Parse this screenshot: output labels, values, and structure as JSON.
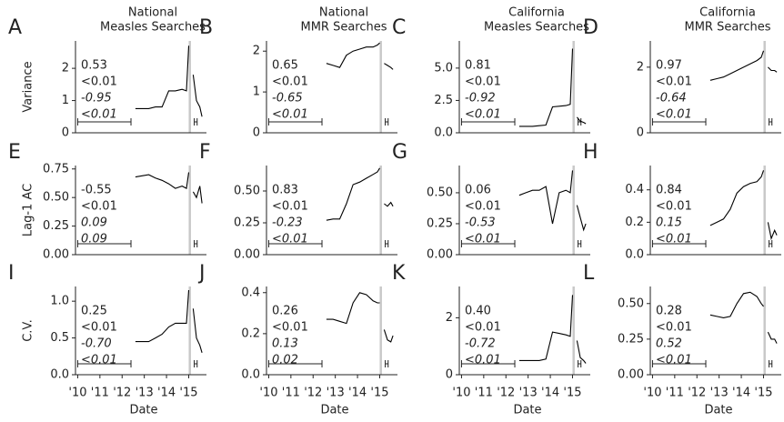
{
  "chart_data": [
    {
      "type": "line",
      "label": "A",
      "title": [
        "National",
        "Measles Searches"
      ],
      "ylabel": "Variance",
      "ylim": [
        0,
        2.85
      ],
      "yticks": [
        0,
        1,
        2
      ],
      "xlim": [
        2009.9,
        2015.8
      ],
      "color": "#000",
      "span": [
        2015.0,
        2015.1
      ],
      "window": [
        2010,
        2012.4
      ],
      "window2": [
        2015.25,
        2015.38
      ],
      "annotations": [
        "0.53",
        "<0.01",
        "-0.95",
        "<0.01"
      ],
      "x": [
        2012.6,
        2012.9,
        2013.2,
        2013.5,
        2013.8,
        2014.1,
        2014.4,
        2014.7,
        2014.9,
        2015.0,
        2015.1,
        2015.2,
        2015.35,
        2015.5,
        2015.6
      ],
      "values": [
        0.75,
        0.75,
        0.75,
        0.8,
        0.8,
        1.3,
        1.3,
        1.35,
        1.3,
        2.7,
        null,
        1.8,
        1.0,
        0.8,
        0.5
      ]
    },
    {
      "type": "line",
      "label": "B",
      "title": [
        "National",
        "MMR Searches"
      ],
      "ylim": [
        0,
        2.25
      ],
      "yticks": [
        0,
        1,
        2
      ],
      "xlim": [
        2009.9,
        2015.8
      ],
      "color": "#000",
      "span": [
        2015.0,
        2015.1
      ],
      "window": [
        2010,
        2012.4
      ],
      "window2": [
        2015.25,
        2015.38
      ],
      "annotations": [
        "0.65",
        "<0.01",
        "-0.65",
        "<0.01"
      ],
      "x": [
        2012.6,
        2012.9,
        2013.2,
        2013.5,
        2013.8,
        2014.1,
        2014.4,
        2014.7,
        2014.9,
        2015.0,
        2015.1,
        2015.2,
        2015.35,
        2015.5,
        2015.6
      ],
      "values": [
        1.7,
        1.65,
        1.6,
        1.9,
        2.0,
        2.05,
        2.1,
        2.1,
        2.15,
        2.2,
        null,
        1.7,
        1.65,
        1.6,
        1.55
      ]
    },
    {
      "type": "line",
      "label": "C",
      "title": [
        "California",
        "Measles Searches"
      ],
      "ylim": [
        0,
        7.1
      ],
      "yticks": [
        {
          "value": 0,
          "label": "0.0"
        },
        {
          "value": 2.5,
          "label": "2.5"
        },
        {
          "value": 5,
          "label": "5.0"
        }
      ],
      "xlim": [
        2009.9,
        2015.8
      ],
      "color": "#000",
      "span": [
        2015.0,
        2015.1
      ],
      "window": [
        2010,
        2012.4
      ],
      "window2": [
        2015.25,
        2015.38
      ],
      "annotations": [
        "0.81",
        "<0.01",
        "-0.92",
        "<0.01"
      ],
      "x": [
        2012.6,
        2012.9,
        2013.2,
        2013.5,
        2013.8,
        2014.1,
        2014.4,
        2014.7,
        2014.9,
        2015.0,
        2015.1,
        2015.2,
        2015.35,
        2015.5,
        2015.6
      ],
      "values": [
        0.5,
        0.5,
        0.5,
        0.55,
        0.6,
        2.0,
        2.05,
        2.1,
        2.2,
        6.5,
        null,
        1.2,
        0.9,
        0.8,
        0.7
      ]
    },
    {
      "type": "line",
      "label": "D",
      "title": [
        "California",
        "MMR Searches"
      ],
      "ylim": [
        0,
        2.8
      ],
      "yticks": [
        0,
        2
      ],
      "xlim": [
        2009.9,
        2015.8
      ],
      "color": "#000",
      "span": [
        2015.0,
        2015.1
      ],
      "window": [
        2010,
        2012.4
      ],
      "window2": [
        2015.25,
        2015.38
      ],
      "annotations": [
        "0.97",
        "<0.01",
        "-0.64",
        "<0.01"
      ],
      "x": [
        2012.6,
        2012.9,
        2013.2,
        2013.5,
        2013.8,
        2014.1,
        2014.4,
        2014.7,
        2014.9,
        2015.0,
        2015.1,
        2015.2,
        2015.35,
        2015.5,
        2015.6
      ],
      "values": [
        1.6,
        1.65,
        1.7,
        1.8,
        1.9,
        2.0,
        2.1,
        2.2,
        2.3,
        2.5,
        null,
        2.0,
        1.9,
        1.9,
        1.85
      ]
    },
    {
      "type": "line",
      "label": "E",
      "ylabel": "Lag-1 AC",
      "ylim": [
        0,
        0.78
      ],
      "yticks": [
        {
          "value": 0,
          "label": "0.00"
        },
        {
          "value": 0.25,
          "label": "0.25"
        },
        {
          "value": 0.5,
          "label": "0.50"
        },
        {
          "value": 0.75,
          "label": "0.75"
        }
      ],
      "xlim": [
        2009.9,
        2015.8
      ],
      "color": "#000",
      "span": [
        2015.0,
        2015.1
      ],
      "window": [
        2010,
        2012.4
      ],
      "window2": [
        2015.25,
        2015.38
      ],
      "annotations": [
        "-0.55",
        "<0.01",
        "0.09",
        "0.09"
      ],
      "x": [
        2012.6,
        2012.9,
        2013.2,
        2013.5,
        2013.8,
        2014.1,
        2014.4,
        2014.7,
        2014.9,
        2015.0,
        2015.1,
        2015.2,
        2015.35,
        2015.5,
        2015.6
      ],
      "values": [
        0.68,
        0.69,
        0.7,
        0.67,
        0.65,
        0.62,
        0.58,
        0.6,
        0.58,
        0.72,
        null,
        0.55,
        0.5,
        0.6,
        0.45
      ]
    },
    {
      "type": "line",
      "label": "F",
      "ylim": [
        0,
        0.7
      ],
      "yticks": [
        {
          "value": 0,
          "label": "0.00"
        },
        {
          "value": 0.25,
          "label": "0.25"
        },
        {
          "value": 0.5,
          "label": "0.50"
        }
      ],
      "xlim": [
        2009.9,
        2015.8
      ],
      "color": "#000",
      "span": [
        2015.0,
        2015.1
      ],
      "window": [
        2010,
        2012.4
      ],
      "window2": [
        2015.25,
        2015.38
      ],
      "annotations": [
        "0.83",
        "<0.01",
        "-0.23",
        "<0.01"
      ],
      "x": [
        2012.6,
        2012.9,
        2013.2,
        2013.5,
        2013.8,
        2014.1,
        2014.4,
        2014.7,
        2014.9,
        2015.0,
        2015.1,
        2015.2,
        2015.35,
        2015.5,
        2015.6
      ],
      "values": [
        0.27,
        0.28,
        0.28,
        0.4,
        0.55,
        0.57,
        0.6,
        0.63,
        0.65,
        0.68,
        null,
        0.4,
        0.38,
        0.41,
        0.38
      ]
    },
    {
      "type": "line",
      "label": "G",
      "ylim": [
        0,
        0.72
      ],
      "yticks": [
        {
          "value": 0,
          "label": "0.00"
        },
        {
          "value": 0.25,
          "label": "0.25"
        },
        {
          "value": 0.5,
          "label": "0.50"
        }
      ],
      "xlim": [
        2009.9,
        2015.8
      ],
      "color": "#000",
      "span": [
        2015.0,
        2015.1
      ],
      "window": [
        2010,
        2012.4
      ],
      "window2": [
        2015.25,
        2015.38
      ],
      "annotations": [
        "0.06",
        "<0.01",
        "-0.53",
        "<0.01"
      ],
      "x": [
        2012.6,
        2012.9,
        2013.2,
        2013.5,
        2013.8,
        2014.1,
        2014.4,
        2014.7,
        2014.9,
        2015.0,
        2015.1,
        2015.2,
        2015.35,
        2015.5,
        2015.6
      ],
      "values": [
        0.48,
        0.5,
        0.52,
        0.52,
        0.55,
        0.25,
        0.5,
        0.52,
        0.5,
        0.68,
        null,
        0.4,
        0.3,
        0.2,
        0.25
      ]
    },
    {
      "type": "line",
      "label": "H",
      "ylim": [
        0,
        0.55
      ],
      "yticks": [
        {
          "value": 0,
          "label": "0.0"
        },
        0.2,
        0.4
      ],
      "xlim": [
        2009.9,
        2015.8
      ],
      "color": "#000",
      "span": [
        2015.0,
        2015.1
      ],
      "window": [
        2010,
        2012.4
      ],
      "window2": [
        2015.25,
        2015.38
      ],
      "annotations": [
        "0.84",
        "<0.01",
        "0.15",
        "<0.01"
      ],
      "x": [
        2012.6,
        2012.9,
        2013.2,
        2013.5,
        2013.8,
        2014.1,
        2014.4,
        2014.7,
        2014.9,
        2015.0,
        2015.1,
        2015.2,
        2015.35,
        2015.5,
        2015.6
      ],
      "values": [
        0.18,
        0.2,
        0.22,
        0.28,
        0.38,
        0.42,
        0.44,
        0.45,
        0.48,
        0.52,
        null,
        0.2,
        0.1,
        0.15,
        0.12
      ]
    },
    {
      "type": "line",
      "label": "I",
      "ylabel": "C.V.",
      "xlabel": "Date",
      "ylim": [
        0,
        1.2
      ],
      "yticks": [
        {
          "value": 0,
          "label": "0.0"
        },
        0.5,
        {
          "value": 1,
          "label": "1.0"
        }
      ],
      "xlim": [
        2009.9,
        2015.8
      ],
      "xticks": [
        {
          "value": 2010,
          "label": "'10"
        },
        {
          "value": 2011,
          "label": "'11"
        },
        {
          "value": 2012,
          "label": "'12"
        },
        {
          "value": 2013,
          "label": "'13"
        },
        {
          "value": 2014,
          "label": "'14"
        },
        {
          "value": 2015,
          "label": "'15"
        }
      ],
      "color": "#000",
      "span": [
        2015.0,
        2015.1
      ],
      "window": [
        2010,
        2012.4
      ],
      "window2": [
        2015.25,
        2015.38
      ],
      "annotations": [
        "0.25",
        "<0.01",
        "-0.70",
        "<0.01"
      ],
      "x": [
        2012.6,
        2012.9,
        2013.2,
        2013.5,
        2013.8,
        2014.1,
        2014.4,
        2014.7,
        2014.9,
        2015.0,
        2015.1,
        2015.2,
        2015.35,
        2015.5,
        2015.6
      ],
      "values": [
        0.45,
        0.45,
        0.45,
        0.5,
        0.55,
        0.65,
        0.7,
        0.7,
        0.7,
        1.15,
        null,
        0.9,
        0.5,
        0.4,
        0.3
      ]
    },
    {
      "type": "line",
      "label": "J",
      "xlabel": "Date",
      "ylim": [
        0,
        0.43
      ],
      "yticks": [
        {
          "value": 0,
          "label": "0.0"
        },
        0.2,
        0.4
      ],
      "xlim": [
        2009.9,
        2015.8
      ],
      "xticks": [
        {
          "value": 2010,
          "label": "'10"
        },
        {
          "value": 2011,
          "label": "'11"
        },
        {
          "value": 2012,
          "label": "'12"
        },
        {
          "value": 2013,
          "label": "'13"
        },
        {
          "value": 2014,
          "label": "'14"
        },
        {
          "value": 2015,
          "label": "'15"
        }
      ],
      "color": "#000",
      "span": [
        2015.0,
        2015.1
      ],
      "window": [
        2010,
        2012.4
      ],
      "window2": [
        2015.25,
        2015.38
      ],
      "annotations": [
        "0.26",
        "<0.01",
        "0.13",
        "0.02"
      ],
      "x": [
        2012.6,
        2012.9,
        2013.2,
        2013.5,
        2013.8,
        2014.1,
        2014.4,
        2014.7,
        2014.9,
        2015.0,
        2015.1,
        2015.2,
        2015.35,
        2015.5,
        2015.6
      ],
      "values": [
        0.27,
        0.27,
        0.26,
        0.25,
        0.35,
        0.4,
        0.39,
        0.36,
        0.35,
        0.35,
        null,
        0.22,
        0.17,
        0.16,
        0.19
      ]
    },
    {
      "type": "line",
      "label": "K",
      "xlabel": "Date",
      "ylim": [
        0,
        3.1
      ],
      "yticks": [
        0,
        2
      ],
      "xlim": [
        2009.9,
        2015.8
      ],
      "xticks": [
        {
          "value": 2010,
          "label": "'10"
        },
        {
          "value": 2011,
          "label": "'11"
        },
        {
          "value": 2012,
          "label": "'12"
        },
        {
          "value": 2013,
          "label": "'13"
        },
        {
          "value": 2014,
          "label": "'14"
        },
        {
          "value": 2015,
          "label": "'15"
        }
      ],
      "color": "#000",
      "span": [
        2015.0,
        2015.1
      ],
      "window": [
        2010,
        2012.4
      ],
      "window2": [
        2015.25,
        2015.38
      ],
      "annotations": [
        "0.40",
        "<0.01",
        "-0.72",
        "<0.01"
      ],
      "x": [
        2012.6,
        2012.9,
        2013.2,
        2013.5,
        2013.8,
        2014.1,
        2014.4,
        2014.7,
        2014.9,
        2015.0,
        2015.1,
        2015.2,
        2015.35,
        2015.5,
        2015.6
      ],
      "values": [
        0.5,
        0.5,
        0.5,
        0.5,
        0.55,
        1.5,
        1.45,
        1.4,
        1.35,
        2.8,
        null,
        1.2,
        0.6,
        0.5,
        0.4
      ]
    },
    {
      "type": "line",
      "label": "L",
      "xlabel": "Date",
      "ylim": [
        0,
        0.62
      ],
      "yticks": [
        {
          "value": 0,
          "label": "0.00"
        },
        {
          "value": 0.25,
          "label": "0.25"
        },
        {
          "value": 0.5,
          "label": "0.50"
        }
      ],
      "xlim": [
        2009.9,
        2015.8
      ],
      "xticks": [
        {
          "value": 2010,
          "label": "'10"
        },
        {
          "value": 2011,
          "label": "'11"
        },
        {
          "value": 2012,
          "label": "'12"
        },
        {
          "value": 2013,
          "label": "'13"
        },
        {
          "value": 2014,
          "label": "'14"
        },
        {
          "value": 2015,
          "label": "'15"
        }
      ],
      "color": "#000",
      "span": [
        2015.0,
        2015.1
      ],
      "window": [
        2010,
        2012.4
      ],
      "window2": [
        2015.25,
        2015.38
      ],
      "annotations": [
        "0.28",
        "<0.01",
        "0.52",
        "<0.01"
      ],
      "x": [
        2012.6,
        2012.9,
        2013.2,
        2013.5,
        2013.8,
        2014.1,
        2014.4,
        2014.7,
        2014.9,
        2015.0,
        2015.1,
        2015.2,
        2015.35,
        2015.5,
        2015.6
      ],
      "values": [
        0.42,
        0.41,
        0.4,
        0.41,
        0.5,
        0.57,
        0.58,
        0.55,
        0.5,
        0.48,
        null,
        0.3,
        0.25,
        0.25,
        0.22
      ]
    }
  ]
}
